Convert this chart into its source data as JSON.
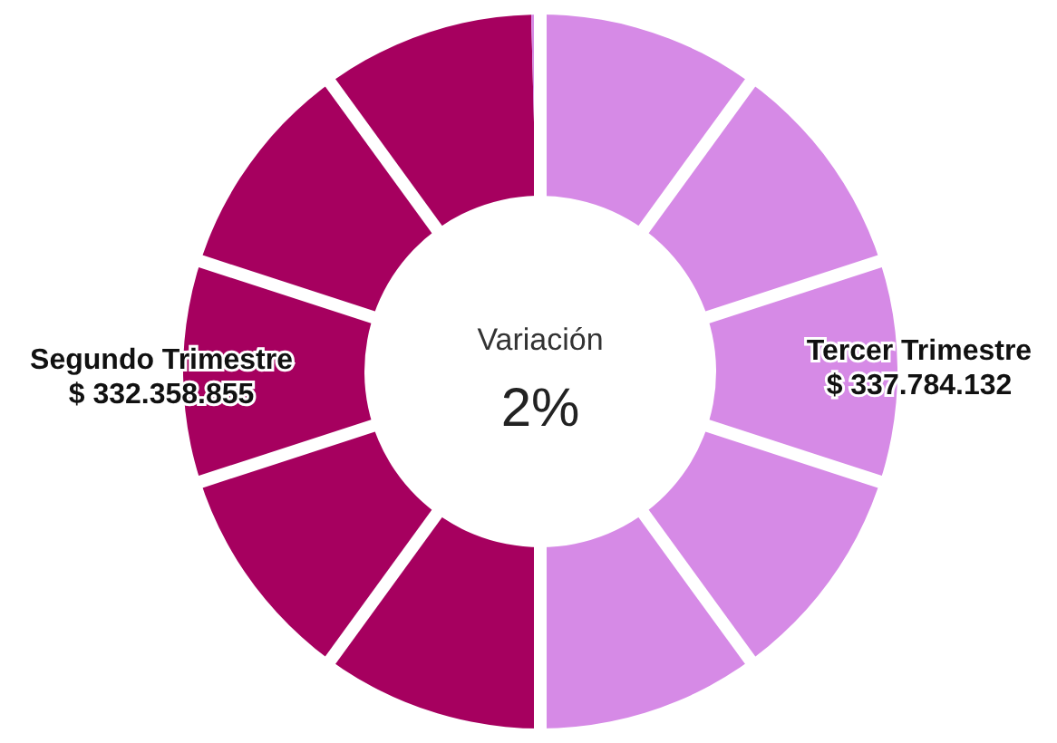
{
  "chart_data": {
    "type": "donut",
    "categories": [
      "Segundo Trimestre",
      "Tercer Trimestre"
    ],
    "values": [
      332358855,
      337784132
    ],
    "value_labels": [
      "$ 332.358.855",
      "$ 337.784.132"
    ],
    "colors": [
      "#a6005f",
      "#d68ae6"
    ],
    "annotations": [
      "Variación",
      "2%"
    ]
  }
}
